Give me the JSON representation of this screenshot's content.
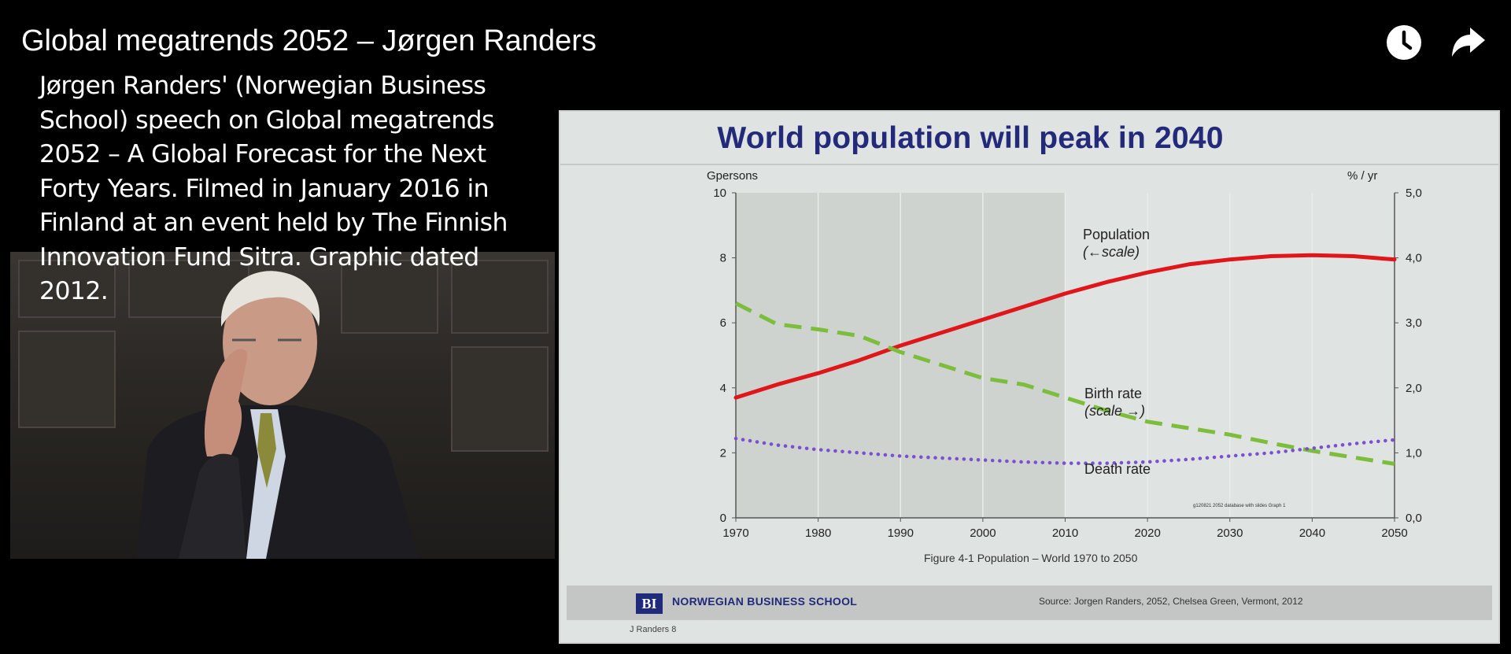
{
  "header": {
    "title": "Global megatrends 2052 – Jørgen Randers",
    "actions": [
      {
        "icon": "clock-icon",
        "name": "watch-later-button"
      },
      {
        "icon": "share-arrow-icon",
        "name": "share-button"
      }
    ]
  },
  "description": {
    "text": "Jørgen Randers' (Norwegian Business School) speech on Global megatrends 2052 – A Global Forecast for the Next Forty Years. Filmed in January 2016 in Finland at an event held by The Finnish Innovation Fund Sitra.   Graphic dated 2012."
  },
  "slide": {
    "title": "World population will peak in 2040",
    "footer_logo": "BI",
    "footer_school": "NORWEGIAN BUSINESS SCHOOL",
    "footer_source": "Source: Jorgen Randers, 2052, Chelsea Green, Vermont, 2012",
    "note": "J Randers 8"
  },
  "colors": {
    "population": "#e0161b",
    "birth_rate": "#7cbe3c",
    "death_rate": "#7a4fd0",
    "title": "#232a7a"
  },
  "chart_data": {
    "type": "line",
    "caption": "Figure 4-1  Population – World 1970 to 2050",
    "fine_print": "g120821 2052 database with slides Graph 1",
    "left_axis_label": "Gpersons",
    "right_axis_label": "% / yr",
    "xlim": [
      1970,
      2050
    ],
    "ylim_left": [
      0,
      10
    ],
    "ylim_right": [
      0,
      5
    ],
    "x_ticks": [
      1970,
      1980,
      1990,
      2000,
      2010,
      2020,
      2030,
      2040,
      2050
    ],
    "y_left_ticks": [
      "0",
      "2",
      "4",
      "6",
      "8",
      "10"
    ],
    "y_right_ticks": [
      "0,0",
      "1,0",
      "2,0",
      "3,0",
      "4,0",
      "5,0"
    ],
    "shaded_region": [
      1970,
      2010
    ],
    "series": [
      {
        "name": "Population",
        "label_line2": "(←scale)",
        "axis": "left",
        "style": "solid",
        "x": [
          1970,
          1975,
          1980,
          1985,
          1990,
          1995,
          2000,
          2005,
          2010,
          2015,
          2020,
          2025,
          2030,
          2035,
          2040,
          2045,
          2050
        ],
        "y": [
          3.7,
          4.1,
          4.45,
          4.85,
          5.3,
          5.7,
          6.1,
          6.5,
          6.9,
          7.25,
          7.55,
          7.8,
          7.95,
          8.05,
          8.08,
          8.05,
          7.95
        ]
      },
      {
        "name": "Birth rate",
        "label_line2": "(scale →)",
        "axis": "right",
        "style": "dashed",
        "x": [
          1970,
          1975,
          1980,
          1985,
          1990,
          1995,
          2000,
          2005,
          2010,
          2015,
          2020,
          2025,
          2030,
          2035,
          2040,
          2045,
          2050
        ],
        "y": [
          3.3,
          2.98,
          2.9,
          2.8,
          2.55,
          2.35,
          2.15,
          2.05,
          1.85,
          1.65,
          1.48,
          1.38,
          1.28,
          1.15,
          1.03,
          0.93,
          0.83
        ]
      },
      {
        "name": "Death rate",
        "axis": "right",
        "style": "dotted",
        "x": [
          1970,
          1975,
          1980,
          1985,
          1990,
          1995,
          2000,
          2005,
          2010,
          2015,
          2020,
          2025,
          2030,
          2035,
          2040,
          2045,
          2050
        ],
        "y": [
          1.22,
          1.12,
          1.05,
          1.0,
          0.95,
          0.92,
          0.89,
          0.86,
          0.84,
          0.84,
          0.86,
          0.9,
          0.95,
          1.0,
          1.07,
          1.14,
          1.2
        ]
      }
    ]
  }
}
